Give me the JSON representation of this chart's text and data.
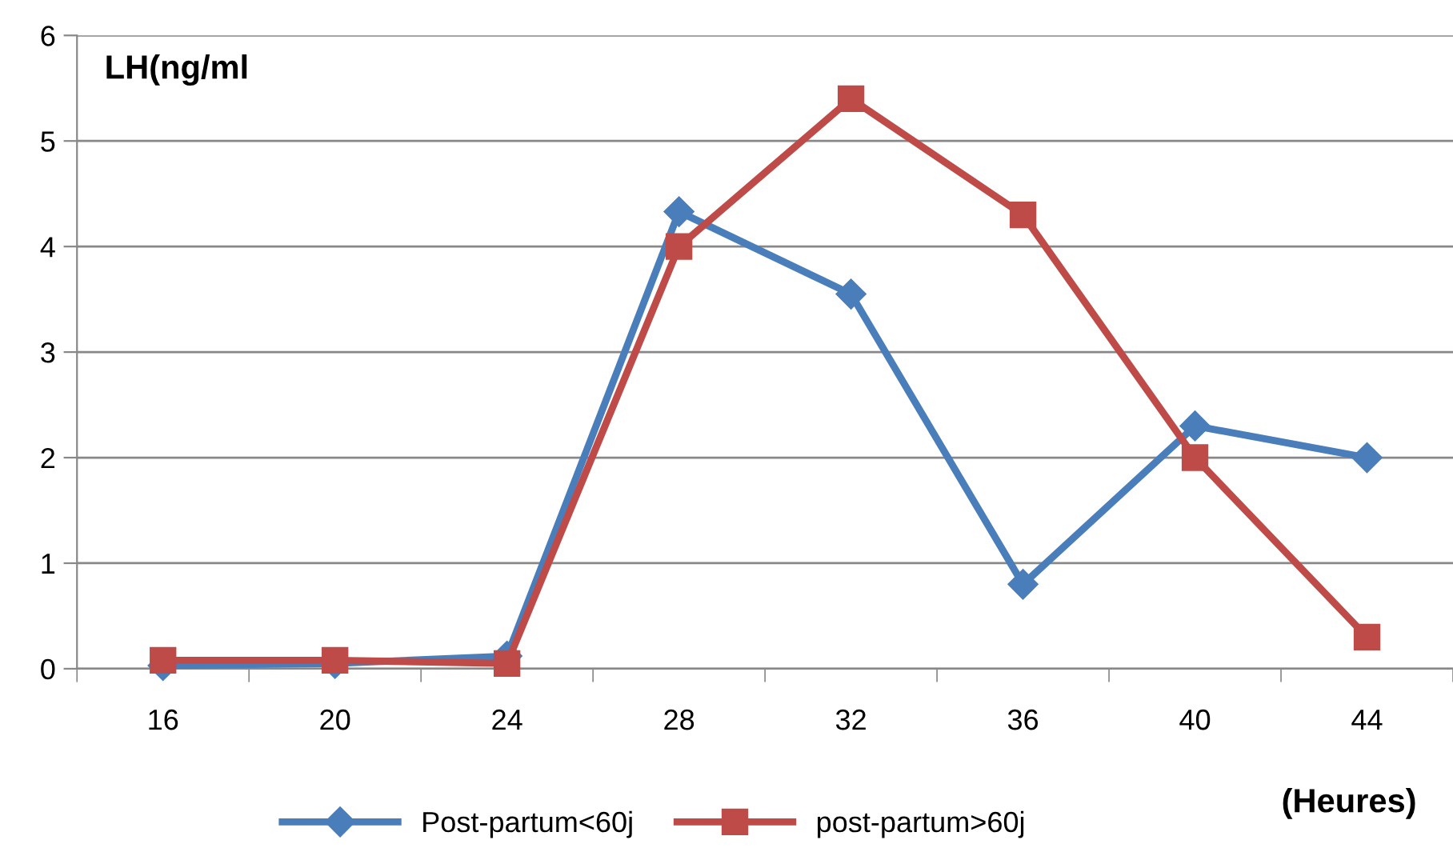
{
  "chart_data": {
    "type": "line",
    "ylabel": "LH(ng/ml",
    "xlabel": "(Heures)",
    "categories": [
      "16",
      "20",
      "24",
      "28",
      "32",
      "36",
      "40",
      "44"
    ],
    "series": [
      {
        "name": "Post-partum<60j",
        "color": "#4a7ebb",
        "marker": "diamond",
        "values": [
          0.03,
          0.05,
          0.12,
          4.33,
          3.55,
          0.8,
          2.3,
          2.0
        ]
      },
      {
        "name": "post-partum>60j",
        "color": "#be4b48",
        "marker": "square",
        "values": [
          0.08,
          0.08,
          0.05,
          4.0,
          5.4,
          4.3,
          2.0,
          0.3
        ]
      }
    ],
    "ylim": [
      0,
      6
    ],
    "yticks": [
      0,
      1,
      2,
      3,
      4,
      5,
      6
    ],
    "grid": "y",
    "legend": "bottom",
    "line_style": "solid"
  }
}
